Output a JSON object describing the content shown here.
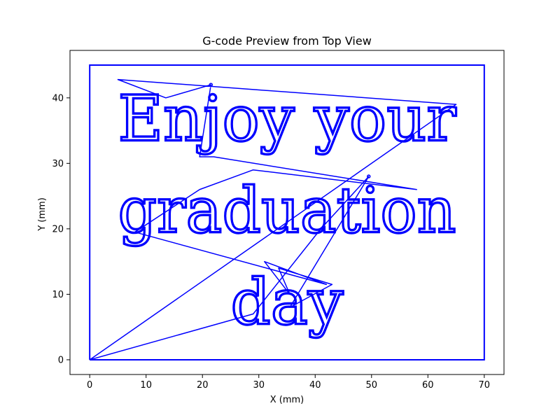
{
  "chart_data": {
    "type": "line",
    "title": "G-code Preview from Top View",
    "xlabel": "X (mm)",
    "ylabel": "Y (mm)",
    "xlim": [
      -3.5,
      73.5
    ],
    "ylim": [
      -2.25,
      47.25
    ],
    "xticks": [
      0,
      10,
      20,
      30,
      40,
      50,
      60,
      70
    ],
    "yticks": [
      0,
      10,
      20,
      30,
      40
    ],
    "grid": false,
    "color": "#0000ff",
    "border": {
      "x": [
        0,
        70,
        70,
        0,
        0
      ],
      "y": [
        0,
        0,
        45,
        45,
        0
      ]
    },
    "engraved_text": [
      {
        "text": "Enjoy your",
        "x_start": 5,
        "x_end": 65,
        "baseline_y": 33.5
      },
      {
        "text": "graduation",
        "x_start": 5,
        "x_end": 65,
        "baseline_y": 19.5
      },
      {
        "text": "day",
        "x_start": 25,
        "x_end": 45,
        "baseline_y": 5.5
      }
    ],
    "travel_path": {
      "x": [
        0,
        65,
        5,
        13.5,
        21.5,
        21.5,
        19.5,
        19.5,
        22,
        58,
        29,
        19.5,
        8,
        42,
        31,
        35.5,
        33.5,
        43,
        35.5,
        49.5,
        49.5,
        41,
        29,
        0
      ],
      "y": [
        0,
        39,
        42.8,
        40,
        42,
        42,
        31,
        31,
        31,
        26,
        29,
        26,
        19.5,
        11.5,
        15,
        10,
        14,
        11.5,
        8,
        28,
        28,
        20,
        7,
        0
      ]
    }
  }
}
